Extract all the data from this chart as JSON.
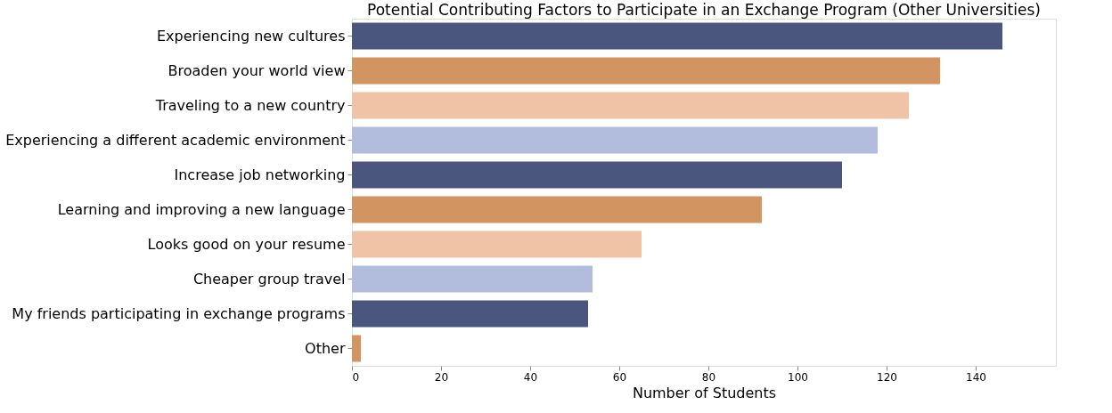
{
  "chart_data": {
    "type": "bar",
    "orientation": "horizontal",
    "title": "Potential Contributing Factors to Participate in an Exchange Program (Other Universities)",
    "xlabel": "Number of Students",
    "categories": [
      "Experiencing new cultures",
      "Broaden your world view",
      "Traveling to a new country",
      "Experiencing a different academic environment",
      "Increase job networking",
      "Learning and improving a new language",
      "Looks good on your resume",
      "Cheaper group travel",
      "My friends participating in exchange programs",
      "Other"
    ],
    "values": [
      146,
      132,
      125,
      118,
      110,
      92,
      65,
      54,
      53,
      2
    ],
    "colors": [
      "#4a567d",
      "#d29461",
      "#f0c3a6",
      "#b2bddd",
      "#4a567d",
      "#d29461",
      "#f0c3a6",
      "#b2bddd",
      "#4a567d",
      "#d29461"
    ],
    "xlim": [
      0,
      158
    ],
    "xticks": [
      0,
      20,
      40,
      60,
      80,
      100,
      120,
      140
    ],
    "grid": false,
    "legend": false
  }
}
